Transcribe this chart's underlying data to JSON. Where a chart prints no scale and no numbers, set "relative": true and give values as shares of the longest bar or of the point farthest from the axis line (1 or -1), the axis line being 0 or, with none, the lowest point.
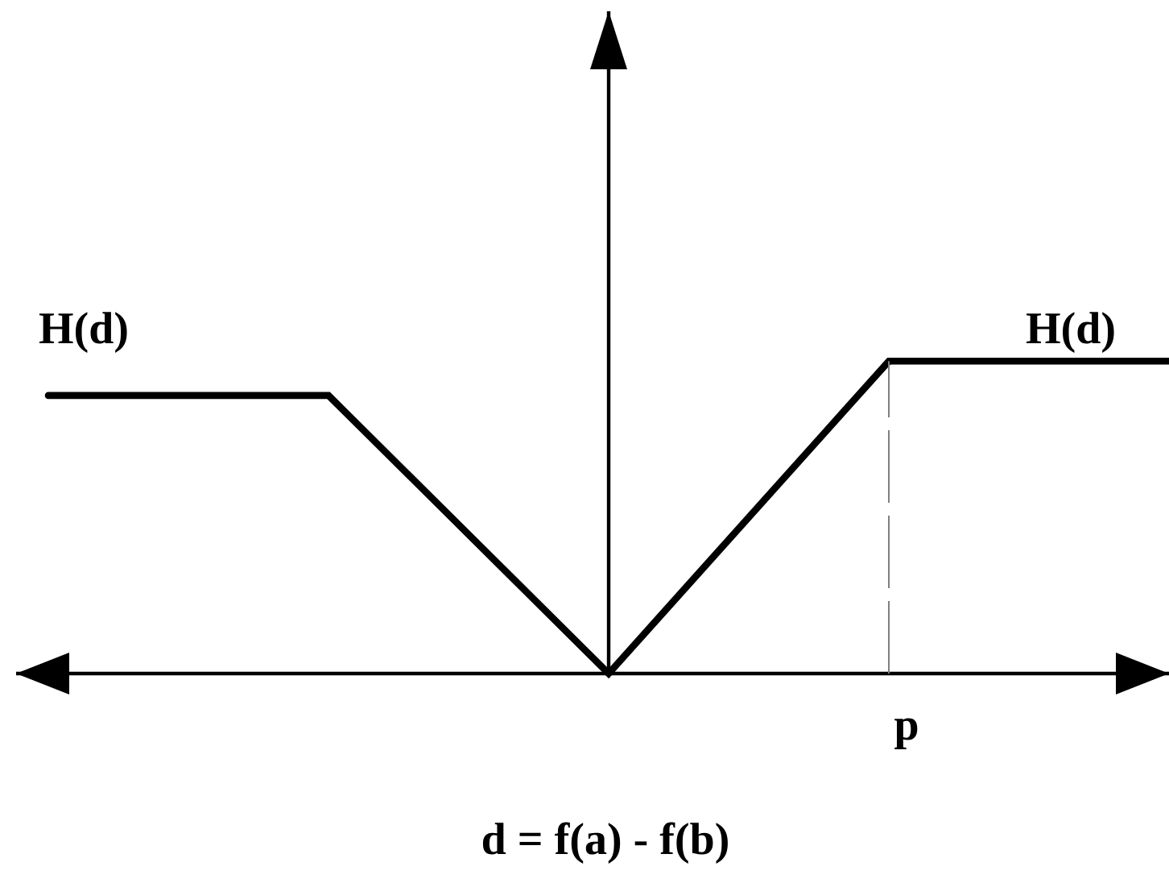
{
  "chart_data": {
    "type": "line",
    "xlabel": "d = f(a) - f(b)",
    "relative": true,
    "marker": "none",
    "categories": [
      null,
      null,
      null,
      null,
      null
    ],
    "series": [
      {
        "color": "#000000",
        "line_style": "solid",
        "values": [
          0.89,
          0.89,
          0,
          1,
          1
        ]
      }
    ],
    "annotations": [
      "H(d)",
      "H(d)",
      "p"
    ]
  }
}
